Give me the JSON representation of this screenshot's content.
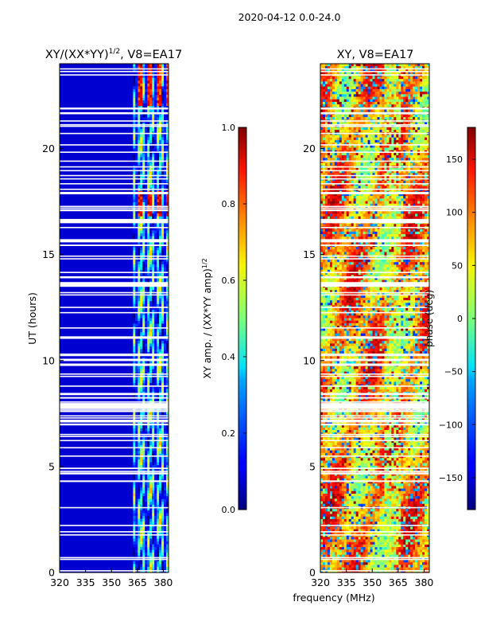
{
  "figure": {
    "suptitle": "2020-04-12 0.0-24.0",
    "xlabel": "frequency (MHz)",
    "ylabel": "UT (hours)"
  },
  "chart_data": [
    {
      "type": "heatmap",
      "title_prefix": "XY/(XX*YY)",
      "title_exp": "1/2",
      "title_suffix": ", V8=EA17",
      "xlim": [
        320,
        383
      ],
      "ylim": [
        0,
        24
      ],
      "xticks": [
        320,
        335,
        350,
        365,
        380
      ],
      "yticks": [
        0,
        5,
        10,
        15,
        20
      ],
      "colorbar": {
        "label_main": "XY amp. / (XX*YY amp)",
        "label_exp": "1/2",
        "range": [
          0.0,
          1.0
        ],
        "ticks": [
          "0.0",
          "0.2",
          "0.4",
          "0.6",
          "0.8",
          "1.0"
        ],
        "tick_values": [
          0.0,
          0.2,
          0.4,
          0.6,
          0.8,
          1.0
        ]
      }
    },
    {
      "type": "heatmap",
      "title": "XY, V8=EA17",
      "xlim": [
        320,
        383
      ],
      "ylim": [
        0,
        24
      ],
      "xticks": [
        320,
        335,
        350,
        365,
        380
      ],
      "yticks": [
        0,
        5,
        10,
        15,
        20
      ],
      "colorbar": {
        "label_main": "phase (deg)",
        "range": [
          -180,
          180
        ],
        "ticks": [
          "−150",
          "−100",
          "−50",
          "0",
          "50",
          "100",
          "150"
        ],
        "tick_values": [
          -150,
          -100,
          -50,
          0,
          50,
          100,
          150
        ]
      }
    }
  ]
}
